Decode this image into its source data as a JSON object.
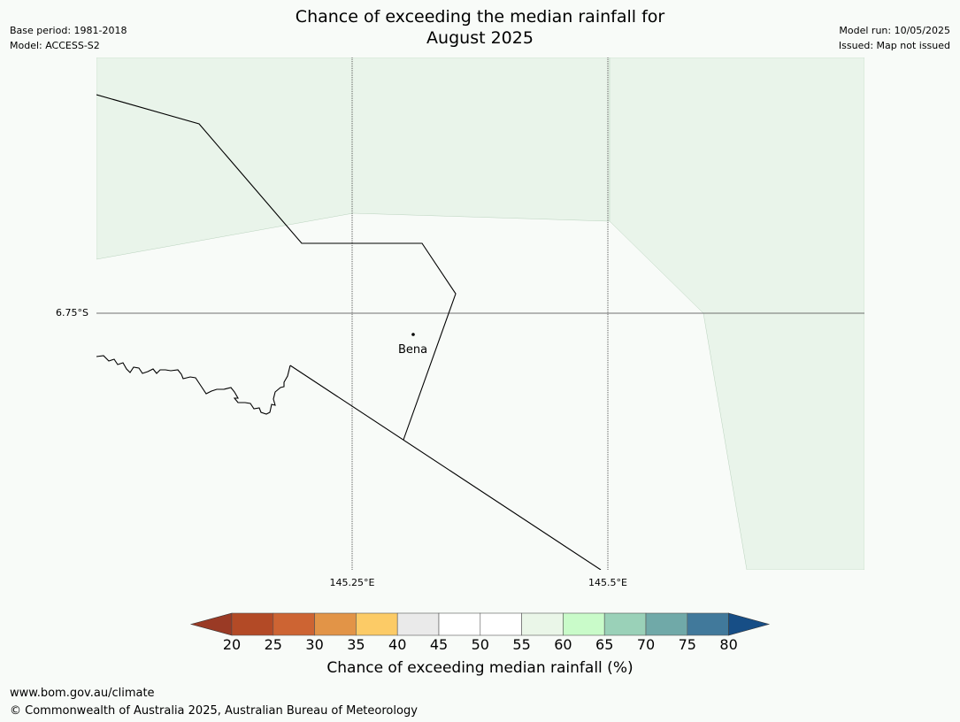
{
  "title": {
    "line1": "Chance of exceeding the median rainfall for",
    "line2": "August 2025"
  },
  "meta_left": {
    "base_period": "Base period: 1981-2018",
    "model": "Model: ACCESS-S2"
  },
  "meta_right": {
    "model_run": "Model run: 10/05/2025",
    "issued": "Issued: Map not issued"
  },
  "map": {
    "place_label": "Bena",
    "lat_labels": [
      "6.75°S"
    ],
    "lon_labels": [
      "145.25°E",
      "145.5°E"
    ],
    "colors": {
      "background": "#f8fbf8",
      "light_green_fill": "#e9f4ea",
      "boundary": "#000000"
    }
  },
  "colorbar": {
    "ticks": [
      "20",
      "25",
      "30",
      "35",
      "40",
      "45",
      "50",
      "55",
      "60",
      "65",
      "70",
      "75",
      "80"
    ],
    "colors": [
      "#9a3a25",
      "#b34a26",
      "#cd6433",
      "#e29447",
      "#fccb66",
      "#eaeaea",
      "#ffffff",
      "#ffffff",
      "#eaf6e8",
      "#c9fbc9",
      "#9ad1b8",
      "#70a9a8",
      "#41799b",
      "#174e86"
    ],
    "label": "Chance of exceeding median rainfall (%)"
  },
  "footer": {
    "url": "www.bom.gov.au/climate",
    "copyright": "© Commonwealth of Australia 2025, Australian Bureau of Meteorology"
  }
}
